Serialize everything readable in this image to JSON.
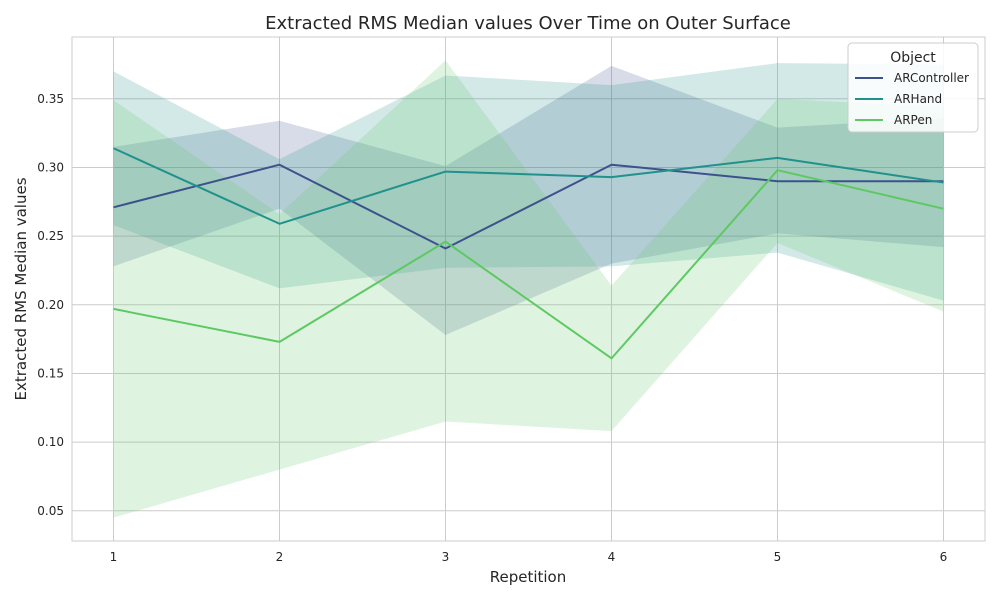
{
  "chart_data": {
    "type": "line",
    "title": "Extracted RMS Median values Over Time on Outer Surface",
    "xlabel": "Repetition",
    "ylabel": "Extracted RMS Median values",
    "x": [
      1,
      2,
      3,
      4,
      5,
      6
    ],
    "xlim": [
      0.75,
      6.25
    ],
    "ylim": [
      0.028,
      0.395
    ],
    "x_ticks": [
      "1",
      "2",
      "3",
      "4",
      "5",
      "6"
    ],
    "y_ticks": [
      "0.05",
      "0.10",
      "0.15",
      "0.20",
      "0.25",
      "0.30",
      "0.35"
    ],
    "grid": true,
    "legend": {
      "title": "Object",
      "position": "top-right"
    },
    "series": [
      {
        "name": "ARController",
        "color": "#3b528b",
        "values": [
          0.271,
          0.302,
          0.241,
          0.302,
          0.29,
          0.29
        ],
        "ci_low": [
          0.228,
          0.27,
          0.178,
          0.23,
          0.252,
          0.242
        ],
        "ci_high": [
          0.315,
          0.334,
          0.301,
          0.374,
          0.329,
          0.336
        ]
      },
      {
        "name": "ARHand",
        "color": "#21918c",
        "values": [
          0.314,
          0.259,
          0.297,
          0.293,
          0.307,
          0.289
        ],
        "ci_low": [
          0.258,
          0.212,
          0.227,
          0.228,
          0.238,
          0.203
        ],
        "ci_high": [
          0.37,
          0.306,
          0.367,
          0.36,
          0.376,
          0.375
        ]
      },
      {
        "name": "ARPen",
        "color": "#5ec962",
        "values": [
          0.197,
          0.173,
          0.246,
          0.161,
          0.298,
          0.27
        ],
        "ci_low": [
          0.045,
          0.08,
          0.115,
          0.108,
          0.245,
          0.195
        ],
        "ci_high": [
          0.349,
          0.266,
          0.378,
          0.214,
          0.35,
          0.344
        ]
      }
    ]
  }
}
